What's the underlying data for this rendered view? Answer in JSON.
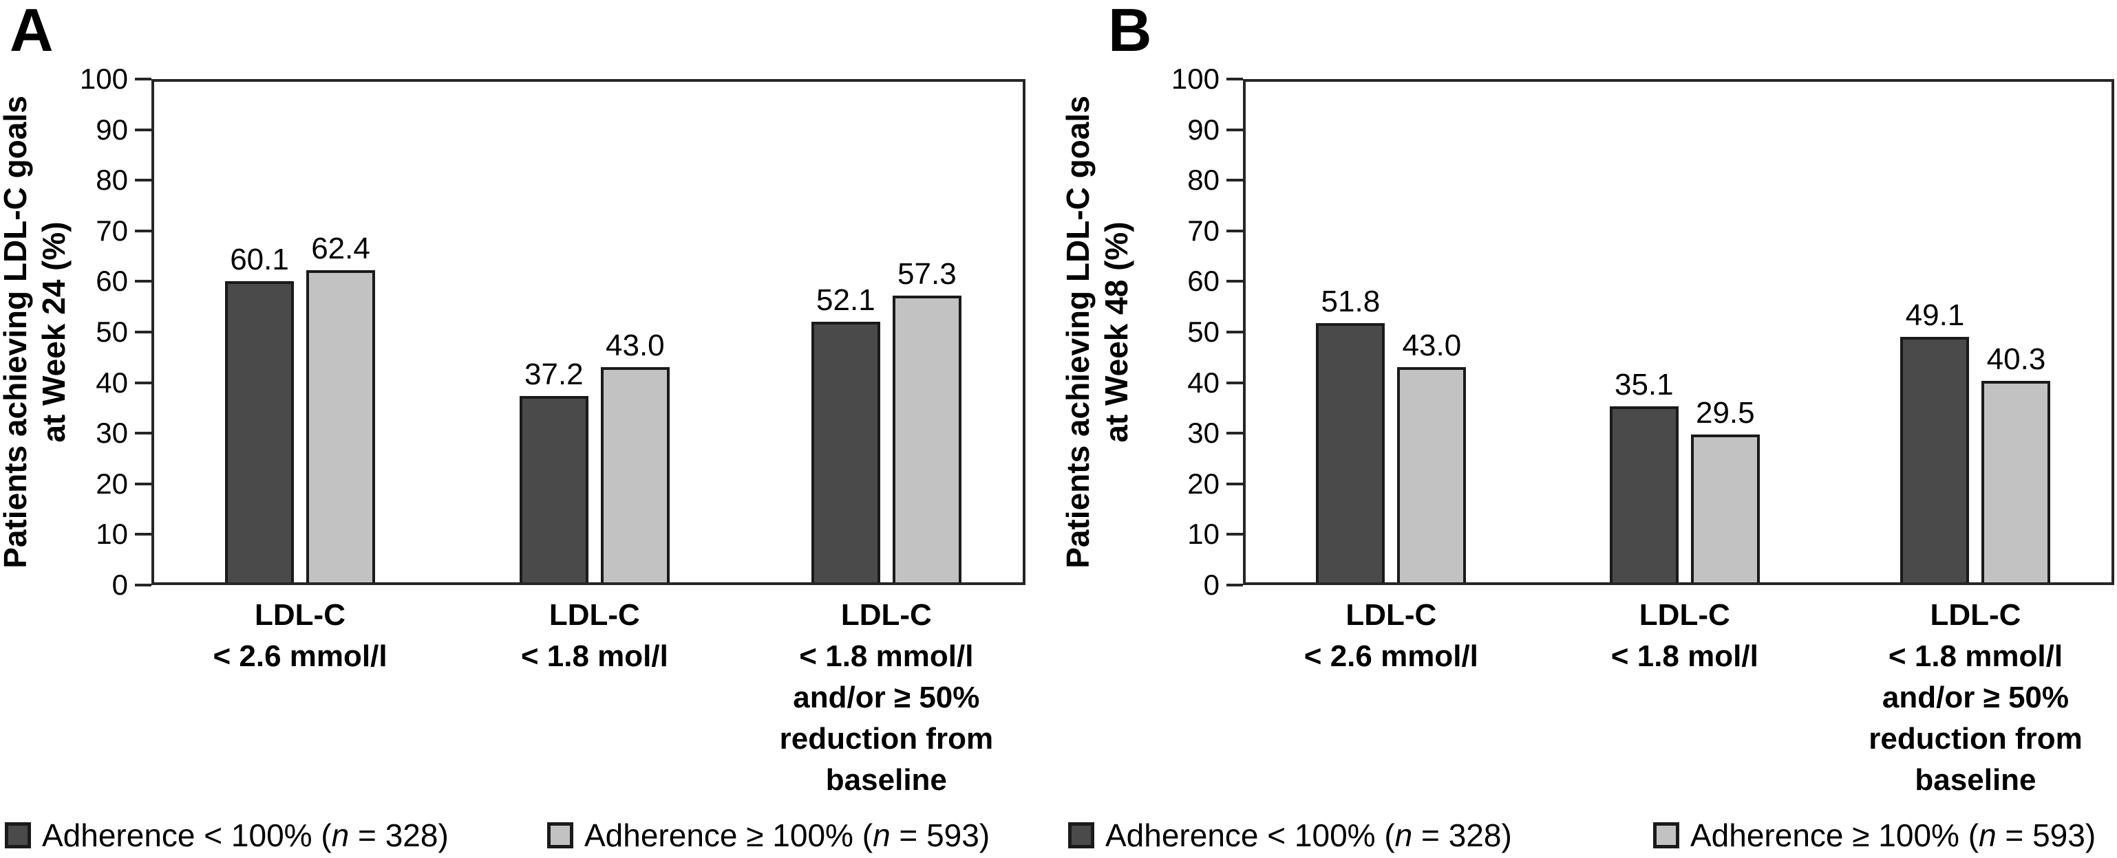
{
  "chart_data": [
    {
      "type": "bar",
      "panel_letter": "A",
      "ylabel": "Patients achieving LDL-C goals at Week 24 (%)",
      "ylabel_lines": [
        "Patients achieving LDL-C goals",
        "at Week 24 (%)"
      ],
      "xlabel": "",
      "title": "",
      "ylim": [
        0,
        100
      ],
      "grid": false,
      "legend_position": "bottom",
      "ytick_labels_desc": [
        "100",
        "90",
        "80",
        "70",
        "60",
        "50",
        "40",
        "30",
        "20",
        "10",
        "0"
      ],
      "categories": [
        "LDL-C < 2.6 mmol/l",
        "LDL-C < 1.8 mol/l",
        "LDL-C < 1.8 mmol/l and/or ≥ 50% reduction from baseline"
      ],
      "category_lines": [
        [
          "LDL-C",
          "< 2.6 mmol/l"
        ],
        [
          "LDL-C",
          "< 1.8 mol/l"
        ],
        [
          "LDL-C",
          "< 1.8 mmol/l",
          "and/or ≥ 50%",
          "reduction from",
          "baseline"
        ]
      ],
      "series": [
        {
          "name": "Adherence < 100% (n = 328)",
          "color": "#4a4a4a",
          "values": [
            60.1,
            37.2,
            52.1
          ],
          "labels": [
            "60.1",
            "37.2",
            "52.1"
          ]
        },
        {
          "name": "Adherence ≥ 100% (n = 593)",
          "color": "#c2c2c2",
          "values": [
            62.4,
            43.0,
            57.3
          ],
          "labels": [
            "62.4",
            "43.0",
            "57.3"
          ]
        }
      ]
    },
    {
      "type": "bar",
      "panel_letter": "B",
      "ylabel": "Patients achieving LDL-C goals at Week 48 (%)",
      "ylabel_lines": [
        "Patients achieving LDL-C goals",
        "at Week 48 (%)"
      ],
      "xlabel": "",
      "title": "",
      "ylim": [
        0,
        100
      ],
      "grid": false,
      "legend_position": "bottom",
      "ytick_labels_desc": [
        "100",
        "90",
        "80",
        "70",
        "60",
        "50",
        "40",
        "30",
        "20",
        "10",
        "0"
      ],
      "categories": [
        "LDL-C < 2.6 mmol/l",
        "LDL-C < 1.8 mol/l",
        "LDL-C < 1.8 mmol/l and/or ≥ 50% reduction from baseline"
      ],
      "category_lines": [
        [
          "LDL-C",
          "< 2.6 mmol/l"
        ],
        [
          "LDL-C",
          "< 1.8 mol/l"
        ],
        [
          "LDL-C",
          "< 1.8 mmol/l",
          "and/or ≥ 50%",
          "reduction from",
          "baseline"
        ]
      ],
      "series": [
        {
          "name": "Adherence < 100% (n = 328)",
          "color": "#4a4a4a",
          "values": [
            51.8,
            35.1,
            49.1
          ],
          "labels": [
            "51.8",
            "35.1",
            "49.1"
          ]
        },
        {
          "name": "Adherence ≥ 100% (n = 593)",
          "color": "#c2c2c2",
          "values": [
            43.0,
            29.5,
            40.3
          ],
          "labels": [
            "43.0",
            "29.5",
            "40.3"
          ]
        }
      ]
    }
  ],
  "legend": {
    "items": [
      {
        "pre": "Adherence < 100% (",
        "n": "n",
        "post": " = 328)"
      },
      {
        "pre": "Adherence ≥ 100% (",
        "n": "n",
        "post": " = 593)"
      },
      {
        "pre": "Adherence < 100% (",
        "n": "n",
        "post": " = 328)"
      },
      {
        "pre": "Adherence ≥ 100% (",
        "n": "n",
        "post": " = 593)"
      }
    ]
  }
}
